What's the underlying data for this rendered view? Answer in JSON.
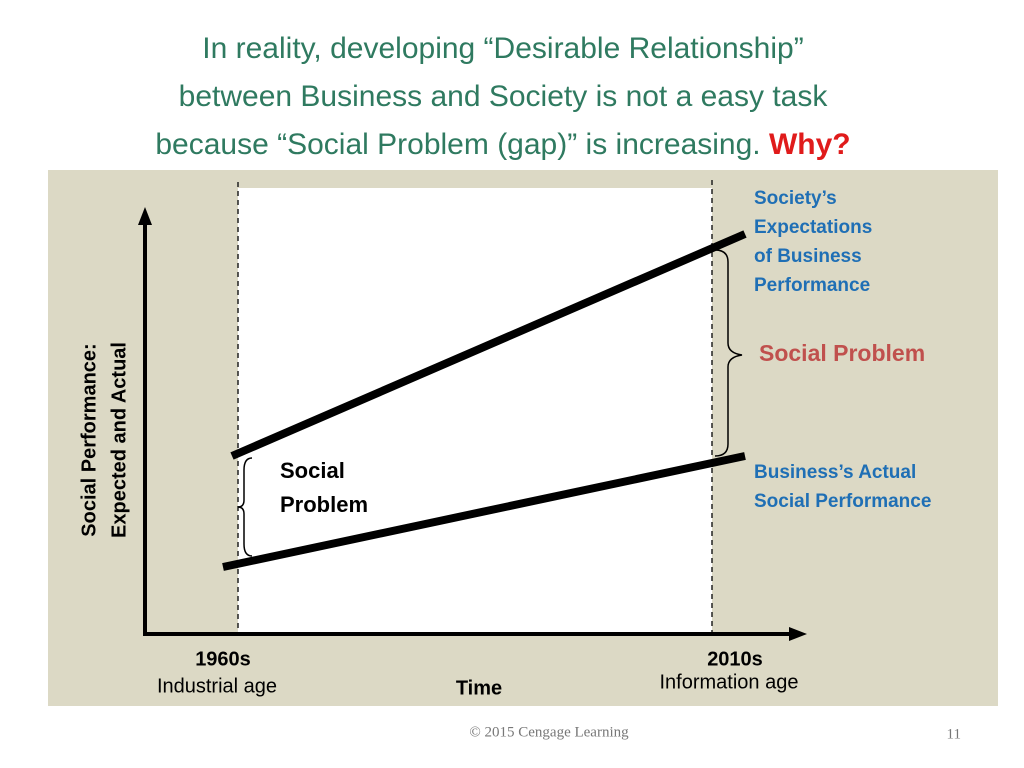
{
  "title": {
    "lines": [
      "In reality, developing “Desirable Relationship”",
      "between Business and Society is not a easy task",
      "because “Social Problem (gap)” is increasing."
    ],
    "emphasis": "Why?"
  },
  "diagram": {
    "y_axis_label": [
      "Social Performance:",
      "Expected and Actual"
    ],
    "x_axis_label": "Time",
    "start": {
      "era": "1960s",
      "name": "Industrial age"
    },
    "end": {
      "era": "2010s",
      "name": "Information age"
    },
    "expectations_label": [
      "Society’s",
      "Expectations",
      "of Business",
      "Performance"
    ],
    "actual_label": [
      "Business’s Actual",
      "Social Performance"
    ],
    "gap_label_start": [
      "Social",
      "Problem"
    ],
    "gap_label_end": "Social Problem"
  },
  "footer": {
    "copyright": "© 2015 Cengage Learning",
    "page_number": 11
  }
}
